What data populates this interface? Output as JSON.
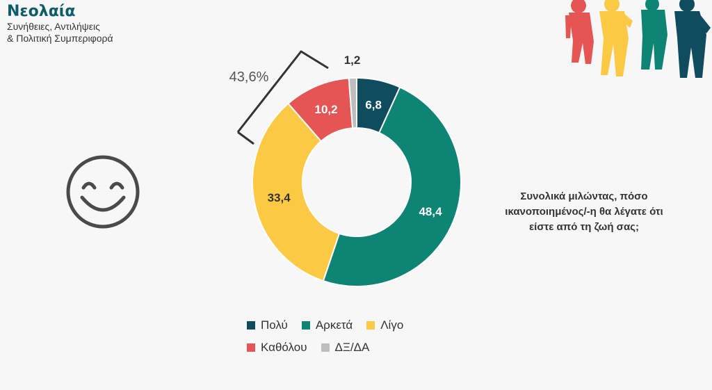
{
  "brand": {
    "title": "Νεολαία",
    "subtitle_1": "Συνήθειες, Αντιλήψεις",
    "subtitle_2": "& Πολιτική Συμπεριφορά"
  },
  "question": "Συνολικά μιλώντας, πόσο ικανοποιημένος/-η θα λέγατε ότι είστε από τη ζωή σας;",
  "bracket_label": "43,6%",
  "colors": {
    "polu": "#0e4c5e",
    "arketa": "#0e8574",
    "ligo": "#fbc944",
    "katholou": "#e45554",
    "dxda": "#bdbdbd"
  },
  "icon": "smiley-face-icon",
  "chart_data": {
    "type": "pie",
    "donut": true,
    "categories": [
      "Πολύ",
      "Αρκετά",
      "Λίγο",
      "Καθόλου",
      "ΔΞ/ΔΑ"
    ],
    "values": [
      6.8,
      48.4,
      33.4,
      10.2,
      1.2
    ],
    "value_labels": [
      "6,8",
      "48,4",
      "33,4",
      "10,2",
      "1,2"
    ],
    "colors": [
      "#0e4c5e",
      "#0e8574",
      "#fbc944",
      "#e45554",
      "#bdbdbd"
    ],
    "legend_position": "bottom",
    "annotation": "43,6%"
  }
}
